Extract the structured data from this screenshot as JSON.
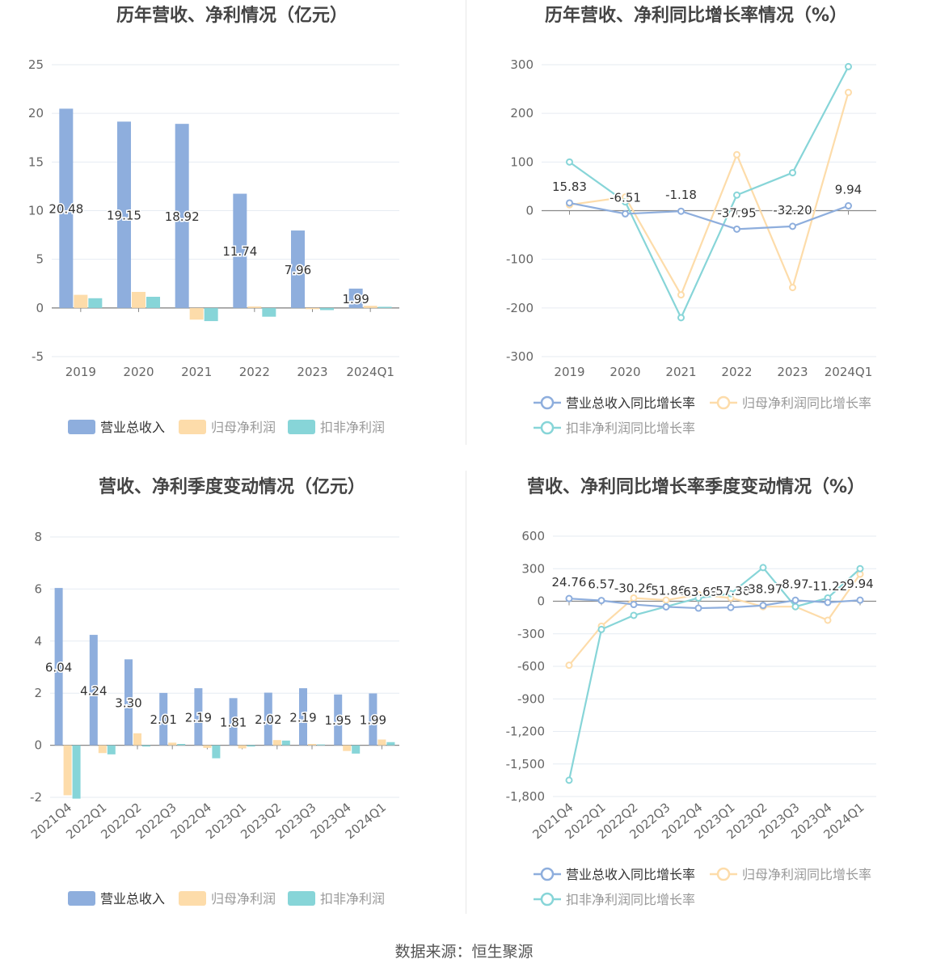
{
  "chart_data": [
    {
      "type": "bar",
      "title": "历年营收、净利情况（亿元）",
      "categories": [
        "2019",
        "2020",
        "2021",
        "2022",
        "2023",
        "2024Q1"
      ],
      "ylim": [
        -5,
        25
      ],
      "yticks": [
        -5,
        0,
        5,
        10,
        15,
        20,
        25
      ],
      "series": [
        {
          "name": "营业总收入",
          "values": [
            20.48,
            19.15,
            18.92,
            11.74,
            7.96,
            1.99
          ],
          "color": "#8eaedd"
        },
        {
          "name": "归母净利润",
          "values": [
            1.35,
            1.65,
            -1.2,
            0.15,
            -0.12,
            0.22
          ],
          "color": "#fddcaa"
        },
        {
          "name": "扣非净利润",
          "values": [
            1.0,
            1.15,
            -1.35,
            -0.9,
            -0.22,
            0.12
          ],
          "color": "#87d5d8"
        }
      ],
      "data_labels": [
        "20.48",
        "19.15",
        "18.92",
        "11.74",
        "7.96",
        "1.99"
      ],
      "legend_position": "bottom"
    },
    {
      "type": "line",
      "title": "历年营收、净利同比增长率情况（%）",
      "categories": [
        "2019",
        "2020",
        "2021",
        "2022",
        "2023",
        "2024Q1"
      ],
      "ylim": [
        -300,
        300
      ],
      "yticks": [
        -300,
        -200,
        -100,
        0,
        100,
        200,
        300
      ],
      "series": [
        {
          "name": "营业总收入同比增长率",
          "values": [
            15.83,
            -6.51,
            -1.18,
            -37.95,
            -32.2,
            9.94
          ],
          "color": "#8eaedd"
        },
        {
          "name": "归母净利润同比增长率",
          "values": [
            12,
            28,
            -173,
            115,
            -158,
            243
          ],
          "color": "#fddcaa"
        },
        {
          "name": "扣非净利润同比增长率",
          "values": [
            100,
            18,
            -220,
            32,
            78,
            296
          ],
          "color": "#87d5d8"
        }
      ],
      "data_labels": [
        "15.83",
        "-6.51",
        "-1.18",
        "-37.95",
        "-32.20",
        "9.94"
      ],
      "legend_position": "bottom"
    },
    {
      "type": "bar",
      "title": "营收、净利季度变动情况（亿元）",
      "categories": [
        "2021Q4",
        "2022Q1",
        "2022Q2",
        "2022Q3",
        "2022Q4",
        "2023Q1",
        "2023Q2",
        "2023Q3",
        "2023Q4",
        "2024Q1"
      ],
      "ylim": [
        -2,
        8
      ],
      "yticks": [
        -2,
        0,
        2,
        4,
        6,
        8
      ],
      "series": [
        {
          "name": "营业总收入",
          "values": [
            6.04,
            4.24,
            3.3,
            2.01,
            2.19,
            1.81,
            2.02,
            2.19,
            1.95,
            1.99
          ],
          "color": "#8eaedd"
        },
        {
          "name": "归母净利润",
          "values": [
            -1.92,
            -0.3,
            0.46,
            0.1,
            -0.1,
            -0.12,
            0.2,
            0.05,
            -0.22,
            0.22
          ],
          "color": "#fddcaa"
        },
        {
          "name": "扣非净利润",
          "values": [
            -2.05,
            -0.35,
            -0.05,
            0.05,
            -0.5,
            -0.05,
            0.18,
            0.03,
            -0.32,
            0.12
          ],
          "color": "#87d5d8"
        }
      ],
      "data_labels": [
        "6.04",
        "4.24",
        "3.30",
        "2.01",
        "2.19",
        "1.81",
        "2.02",
        "2.19",
        "1.95",
        "1.99"
      ],
      "legend_position": "bottom"
    },
    {
      "type": "line",
      "title": "营收、净利同比增长率季度变动情况（%）",
      "categories": [
        "2021Q4",
        "2022Q1",
        "2022Q2",
        "2022Q3",
        "2022Q4",
        "2023Q1",
        "2023Q2",
        "2023Q3",
        "2023Q4",
        "2024Q1"
      ],
      "ylim": [
        -1800,
        600
      ],
      "yticks": [
        -1800,
        -1500,
        -1200,
        -900,
        -600,
        -300,
        0,
        300,
        600
      ],
      "ytick_labels": [
        "-1,800",
        "-1,500",
        "-1,200",
        "-900",
        "-600",
        "-300",
        "0",
        "300",
        "600"
      ],
      "series": [
        {
          "name": "营业总收入同比增长率",
          "values": [
            24.76,
            6.57,
            -30.26,
            -51.86,
            -63.69,
            -57.3,
            -38.97,
            8.97,
            -11.22,
            9.94
          ],
          "color": "#8eaedd"
        },
        {
          "name": "归母净利润同比增长率",
          "values": [
            -590,
            -230,
            30,
            10,
            60,
            30,
            -50,
            -50,
            -175,
            250
          ],
          "color": "#fddcaa"
        },
        {
          "name": "扣非净利润同比增长率",
          "values": [
            -1650,
            -260,
            -130,
            -50,
            30,
            70,
            310,
            -50,
            30,
            300
          ],
          "color": "#87d5d8"
        }
      ],
      "data_labels": [
        "24.76",
        "6.57",
        "-30.26",
        "-51.86",
        "-63.69",
        "-57.30",
        "-38.97",
        "8.97",
        "-11.22",
        "9.94"
      ],
      "legend_position": "bottom"
    }
  ],
  "footer": {
    "source": "数据来源：恒生聚源"
  }
}
